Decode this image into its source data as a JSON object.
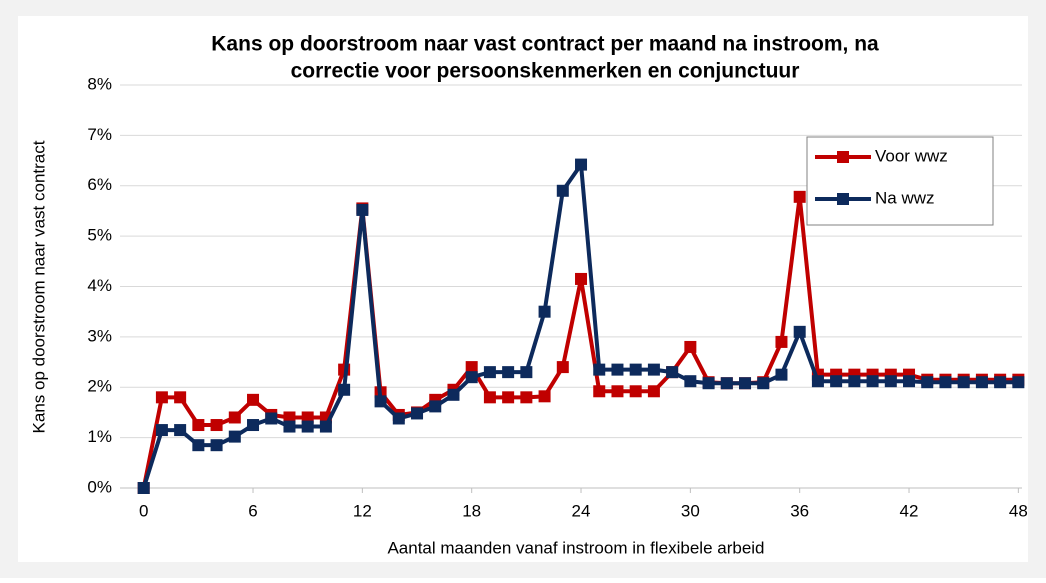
{
  "chart_data": {
    "type": "line",
    "title": [
      "Kans op doorstroom naar vast contract per maand na instroom, na",
      "correctie voor persoonskenmerken en conjunctuur"
    ],
    "xlabel": "Aantal maanden vanaf instroom in flexibele arbeid",
    "ylabel": "Kans op doorstroom naar vast contract",
    "x": [
      0,
      1,
      2,
      3,
      4,
      5,
      6,
      7,
      8,
      9,
      10,
      11,
      12,
      13,
      14,
      15,
      16,
      17,
      18,
      19,
      20,
      21,
      22,
      23,
      24,
      25,
      26,
      27,
      28,
      29,
      30,
      31,
      32,
      33,
      34,
      35,
      36,
      37,
      38,
      39,
      40,
      41,
      42,
      43,
      44,
      45,
      46,
      47,
      48
    ],
    "series": [
      {
        "name": "Voor wwz",
        "color": "#c00000",
        "values": [
          0,
          1.8,
          1.8,
          1.25,
          1.25,
          1.4,
          1.75,
          1.45,
          1.4,
          1.4,
          1.4,
          2.35,
          5.55,
          1.9,
          1.45,
          1.5,
          1.75,
          1.95,
          2.4,
          1.8,
          1.8,
          1.8,
          1.82,
          2.4,
          4.15,
          1.92,
          1.92,
          1.92,
          1.92,
          2.3,
          2.8,
          2.1,
          2.08,
          2.08,
          2.1,
          2.9,
          5.78,
          2.25,
          2.25,
          2.25,
          2.25,
          2.25,
          2.25,
          2.15,
          2.15,
          2.15,
          2.15,
          2.15,
          2.15
        ]
      },
      {
        "name": "Na wwz",
        "color": "#0d2a5c",
        "values": [
          0,
          1.15,
          1.15,
          0.85,
          0.85,
          1.02,
          1.25,
          1.38,
          1.22,
          1.22,
          1.22,
          1.95,
          5.52,
          1.72,
          1.38,
          1.48,
          1.62,
          1.85,
          2.2,
          2.3,
          2.3,
          2.3,
          3.5,
          5.9,
          6.42,
          2.35,
          2.35,
          2.35,
          2.35,
          2.3,
          2.12,
          2.08,
          2.08,
          2.08,
          2.08,
          2.25,
          3.1,
          2.12,
          2.12,
          2.12,
          2.12,
          2.12,
          2.12,
          2.1,
          2.1,
          2.1,
          2.1,
          2.1,
          2.1
        ]
      }
    ],
    "xlim": [
      -1.3,
      48.2
    ],
    "xticks": [
      0,
      6,
      12,
      18,
      24,
      30,
      36,
      42,
      48
    ],
    "ylim": [
      0,
      8
    ],
    "yticks": [
      {
        "value": 0,
        "label": "0%"
      },
      {
        "value": 1,
        "label": "1%"
      },
      {
        "value": 2,
        "label": "2%"
      },
      {
        "value": 3,
        "label": "3%"
      },
      {
        "value": 4,
        "label": "4%"
      },
      {
        "value": 5,
        "label": "5%"
      },
      {
        "value": 6,
        "label": "6%"
      },
      {
        "value": 7,
        "label": "7%"
      },
      {
        "value": 8,
        "label": "8%"
      }
    ],
    "grid": true,
    "legend": "upper right"
  }
}
